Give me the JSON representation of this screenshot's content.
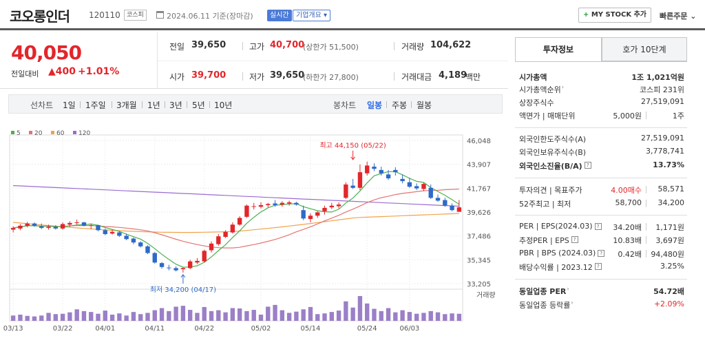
{
  "header": {
    "company": "코오롱인더",
    "code": "120110",
    "market": "코스피",
    "date": "2024.06.11 기준(장마감)",
    "realtime_label": "실시간",
    "overview_label": "기업개요 ▾",
    "mystock_label": "MY STOCK 추가",
    "mystock_plus": "+",
    "quick_order_label": "빠른주문 ⌄"
  },
  "summary": {
    "price": "40,050",
    "change_label": "전일대비",
    "change_value": "▲400",
    "change_pct": "+1.01%",
    "prev_close_label": "전일",
    "prev_close": "39,650",
    "high_label": "고가",
    "high": "40,700",
    "upper_limit": "(상한가 51,500)",
    "volume_label": "거래량",
    "volume": "104,622",
    "open_label": "시가",
    "open": "39,700",
    "low_label": "저가",
    "low": "39,650",
    "lower_limit": "(하한가 27,800)",
    "amount_label": "거래대금",
    "amount": "4,189",
    "amount_unit": "백만"
  },
  "period_tabs": {
    "line_label": "선차트",
    "line_items": [
      "1일",
      "1주일",
      "3개월",
      "1년",
      "3년",
      "5년",
      "10년"
    ],
    "candle_label": "봉차트",
    "candle_items": [
      "일봉",
      "주봉",
      "월봉"
    ],
    "active_candle": "일봉"
  },
  "chart_data": {
    "type": "candlestick",
    "legend": [
      {
        "name": "5",
        "color": "#4caf50"
      },
      {
        "name": "20",
        "color": "#e57373"
      },
      {
        "name": "60",
        "color": "#f0a34a"
      },
      {
        "name": "120",
        "color": "#9b6bd1"
      }
    ],
    "y_ticks": [
      "46,048",
      "43,907",
      "41,767",
      "39,626",
      "37,486",
      "35,345",
      "33,205"
    ],
    "ylim": [
      33205,
      46048
    ],
    "x_ticks": [
      {
        "label": "03/13",
        "i": 0
      },
      {
        "label": "03/22",
        "i": 7
      },
      {
        "label": "04/01",
        "i": 13
      },
      {
        "label": "04/11",
        "i": 20
      },
      {
        "label": "04/22",
        "i": 27
      },
      {
        "label": "05/02",
        "i": 35
      },
      {
        "label": "05/14",
        "i": 42
      },
      {
        "label": "05/24",
        "i": 50
      },
      {
        "label": "06/03",
        "i": 56
      }
    ],
    "volume_label": "거래량",
    "max_label": "최고 44,150 (05/22)",
    "max_index": 48,
    "max_value": 44150,
    "min_label": "최저 34,200 (04/17)",
    "min_index": 24,
    "min_value": 34200,
    "candles": [
      [
        38050,
        38350,
        37800,
        38200
      ],
      [
        38150,
        38550,
        38000,
        38400
      ],
      [
        38400,
        38750,
        38250,
        38600
      ],
      [
        38600,
        38700,
        38300,
        38400
      ],
      [
        38350,
        38600,
        38100,
        38200
      ],
      [
        38200,
        38500,
        38050,
        38300
      ],
      [
        38300,
        38450,
        38050,
        38150
      ],
      [
        38150,
        38700,
        38050,
        38550
      ],
      [
        38500,
        38800,
        38300,
        38650
      ],
      [
        38650,
        38950,
        38500,
        38700
      ],
      [
        38700,
        38750,
        38350,
        38400
      ],
      [
        38400,
        38600,
        38100,
        38450
      ],
      [
        38450,
        38500,
        37900,
        38000
      ],
      [
        38000,
        38150,
        37550,
        37650
      ],
      [
        37700,
        38050,
        37600,
        37850
      ],
      [
        37800,
        37900,
        37400,
        37500
      ],
      [
        37500,
        37700,
        37100,
        37200
      ],
      [
        37250,
        37350,
        36750,
        36900
      ],
      [
        36900,
        37000,
        36450,
        36550
      ],
      [
        36550,
        36650,
        35850,
        35950
      ],
      [
        35950,
        36050,
        35000,
        35100
      ],
      [
        35050,
        35150,
        34550,
        34700
      ],
      [
        34650,
        34900,
        34400,
        34600
      ],
      [
        34600,
        34750,
        34300,
        34400
      ],
      [
        34500,
        34650,
        34200,
        34600
      ],
      [
        34600,
        35350,
        34500,
        35200
      ],
      [
        35100,
        35500,
        34950,
        35250
      ],
      [
        35200,
        36250,
        35100,
        36150
      ],
      [
        36200,
        37000,
        36000,
        36800
      ],
      [
        36750,
        37650,
        36600,
        37450
      ],
      [
        37400,
        38000,
        37300,
        37850
      ],
      [
        37800,
        38700,
        37700,
        38500
      ],
      [
        38500,
        39250,
        38400,
        39100
      ],
      [
        39200,
        40300,
        39100,
        40200
      ],
      [
        40150,
        40450,
        39850,
        40150
      ],
      [
        40100,
        40500,
        39950,
        40250
      ],
      [
        40250,
        40450,
        40050,
        40350
      ],
      [
        40400,
        40700,
        40100,
        40250
      ],
      [
        40300,
        40600,
        40100,
        40450
      ],
      [
        40400,
        40650,
        40200,
        40500
      ],
      [
        40450,
        40550,
        40200,
        40300
      ],
      [
        39800,
        40200,
        38900,
        39050
      ],
      [
        39000,
        39500,
        38700,
        39300
      ],
      [
        39300,
        39700,
        39100,
        39600
      ],
      [
        39700,
        40200,
        39400,
        40000
      ],
      [
        40050,
        40450,
        39900,
        40200
      ],
      [
        40150,
        40500,
        39950,
        40300
      ],
      [
        40900,
        42300,
        40800,
        42100
      ],
      [
        42000,
        42600,
        41700,
        41800
      ],
      [
        41800,
        43900,
        41600,
        43200
      ],
      [
        43100,
        44150,
        42900,
        43800
      ],
      [
        43700,
        44000,
        43300,
        43500
      ],
      [
        43400,
        43700,
        42900,
        43100
      ],
      [
        43000,
        43400,
        42500,
        42650
      ],
      [
        43400,
        43650,
        42900,
        43200
      ],
      [
        42600,
        43000,
        42200,
        42400
      ],
      [
        42300,
        42700,
        41800,
        41900
      ],
      [
        41950,
        42200,
        41600,
        41750
      ],
      [
        41700,
        42250,
        41500,
        42150
      ],
      [
        41800,
        42100,
        40800,
        40900
      ],
      [
        40900,
        41200,
        40550,
        40650
      ],
      [
        40700,
        40900,
        40100,
        40200
      ],
      [
        40200,
        40400,
        39700,
        39800
      ],
      [
        39650,
        40700,
        39650,
        40050
      ]
    ],
    "volumes": [
      30,
      35,
      28,
      25,
      30,
      45,
      38,
      40,
      48,
      65,
      55,
      50,
      40,
      58,
      35,
      42,
      30,
      50,
      38,
      45,
      60,
      72,
      55,
      80,
      85,
      62,
      45,
      78,
      55,
      60,
      48,
      72,
      70,
      55,
      62,
      35,
      80,
      90,
      60,
      45,
      52,
      65,
      78,
      38,
      42,
      50,
      58,
      110,
      75,
      140,
      98,
      68,
      55,
      72,
      48,
      60,
      50,
      40,
      45,
      55,
      48,
      38,
      42,
      40
    ]
  },
  "right_panel": {
    "tab1": "투자정보",
    "tab2": "호가 10단계",
    "rows": [
      {
        "k": "시가총액",
        "v": "1조 1,021억원",
        "bold": true
      },
      {
        "k": "시가총액순위",
        "v": "코스피 231위",
        "arrow": true
      },
      {
        "k": "상장주식수",
        "v": "27,519,091"
      },
      {
        "k": "액면가 | 매매단위",
        "v2": "5,000원",
        "v": "1주"
      },
      {
        "k": "외국인한도주식수(A)",
        "v": "27,519,091"
      },
      {
        "k": "외국인보유주식수(B)",
        "v": "3,778,741"
      },
      {
        "k": "외국인소진율(B/A)",
        "v": "13.73%",
        "bold": true,
        "q": true
      },
      {
        "k": "투자의견 | 목표주가",
        "v2": "4.00매수",
        "v": "58,571",
        "v2red": true
      },
      {
        "k": "52주최고 | 최저",
        "v2": "58,700",
        "v": "34,200"
      },
      {
        "k": "PER | EPS(2024.03)",
        "v2": "34.20배",
        "v": "1,171원",
        "q": true
      },
      {
        "k": "추정PER | EPS",
        "v2": "10.83배",
        "v": "3,697원",
        "q": true
      },
      {
        "k": "PBR | BPS (2024.03)",
        "v2": "0.42배",
        "v": "94,480원",
        "q": true
      },
      {
        "k": "배당수익률 | 2023.12",
        "v": "3.25%",
        "q": true
      },
      {
        "k": "동일업종 PER",
        "v": "54.72배",
        "bold": true,
        "arrow": true
      },
      {
        "k": "동일업종 등락률",
        "v": "+2.09%",
        "arrow": true,
        "red": true
      }
    ]
  }
}
